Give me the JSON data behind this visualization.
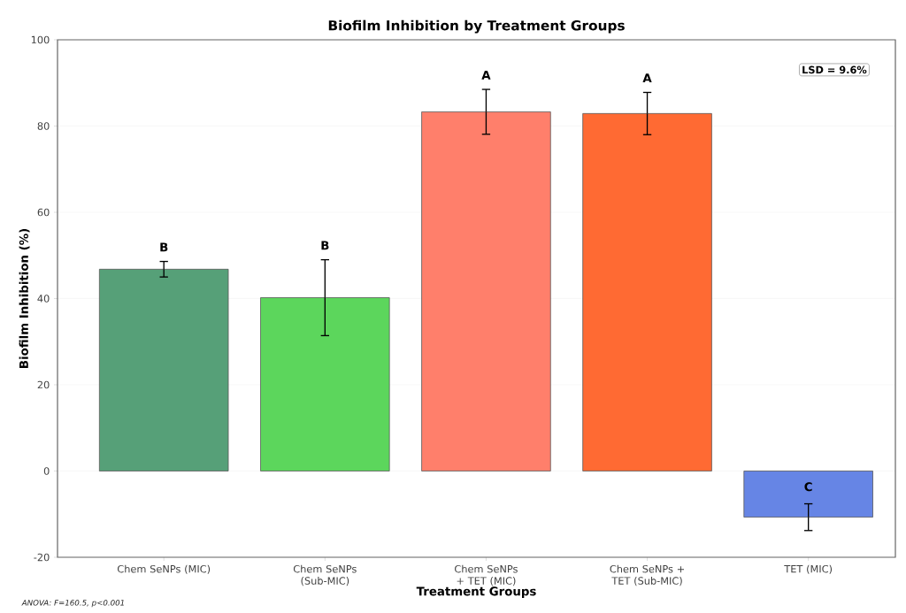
{
  "chart_data": {
    "type": "bar",
    "title": "Biofilm Inhibition by Treatment Groups",
    "xlabel": "Treatment Groups",
    "ylabel": "Biofilm Inhibition (%)",
    "categories": [
      "Chem SeNPs (MIC)",
      "Chem SeNPs (Sub-MIC)",
      "Chem SeNPs + TET (MIC)",
      "Chem SeNPs + TET (Sub-MIC)",
      "TET (MIC)"
    ],
    "values": [
      46.8,
      40.2,
      83.3,
      82.9,
      -10.7
    ],
    "errors": [
      1.8,
      8.8,
      5.2,
      4.9,
      3.1
    ],
    "colors": [
      "#56a078",
      "#5cd65c",
      "#ff7f6b",
      "#ff6a33",
      "#6685e5"
    ],
    "ylim": [
      -20,
      100
    ],
    "yticks": [
      -20,
      0,
      20,
      40,
      60,
      80,
      100
    ],
    "grid": "y",
    "annotations": [
      "B",
      "B",
      "A",
      "A",
      "C",
      "LSD = 9.6%",
      "ANOVA: F=160.5, p<0.001"
    ]
  }
}
